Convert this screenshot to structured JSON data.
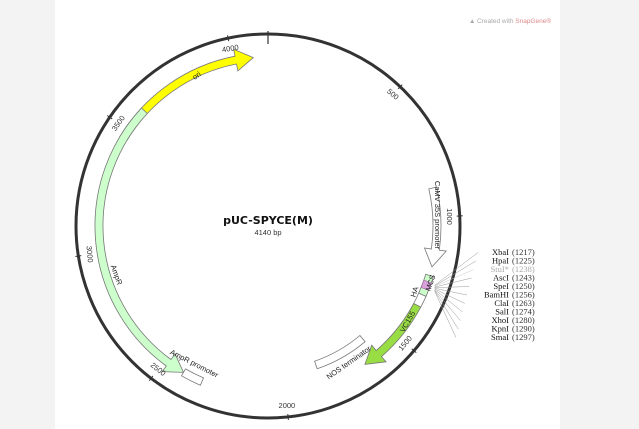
{
  "plasmid": {
    "name": "pUC-SPYCE(M)",
    "size_label": "4140 bp",
    "credit_prefix": "Created with ",
    "credit_brand": "SnapGene®",
    "tick_labels": [
      "500",
      "1000",
      "1500",
      "2000",
      "2500",
      "3000",
      "3500",
      "4000"
    ]
  },
  "features": [
    {
      "key": "ori",
      "label": "ori",
      "color": "#ffff00"
    },
    {
      "key": "ampr",
      "label": "AmpR",
      "color": "#ccffcc"
    },
    {
      "key": "ampr-promoter",
      "label": "AmpR promoter",
      "color": "#ffffff"
    },
    {
      "key": "camv-35s-promoter",
      "label": "CaMV 35S promoter",
      "color": "#ffffff"
    },
    {
      "key": "mcs",
      "label": "MCS",
      "color": "#ccffcc"
    },
    {
      "key": "ha",
      "label": "HA",
      "color": "#ffffff"
    },
    {
      "key": "vc155",
      "label": "VC155",
      "color": "#99dd44"
    },
    {
      "key": "nos-terminator",
      "label": "NOS terminator",
      "color": "#ffffff"
    }
  ],
  "restriction_sites": [
    {
      "name": "XbaI",
      "position": "(1217)",
      "faded": false
    },
    {
      "name": "HpaI",
      "position": "(1225)",
      "faded": false
    },
    {
      "name": "StuI*",
      "position": "(1238)",
      "faded": true
    },
    {
      "name": "AscI",
      "position": "(1243)",
      "faded": false
    },
    {
      "name": "SpeI",
      "position": "(1250)",
      "faded": false
    },
    {
      "name": "BamHI",
      "position": "(1256)",
      "faded": false
    },
    {
      "name": "ClaI",
      "position": "(1263)",
      "faded": false
    },
    {
      "name": "SalI",
      "position": "(1274)",
      "faded": false
    },
    {
      "name": "XhoI",
      "position": "(1280)",
      "faded": false
    },
    {
      "name": "KpnI",
      "position": "(1290)",
      "faded": false
    },
    {
      "name": "SmaI",
      "position": "(1297)",
      "faded": false
    }
  ],
  "colors": {
    "backbone": "#333333",
    "panel": "#ffffff",
    "page": "#f3f3f3",
    "mcs_marker": "#d9a0d9"
  }
}
